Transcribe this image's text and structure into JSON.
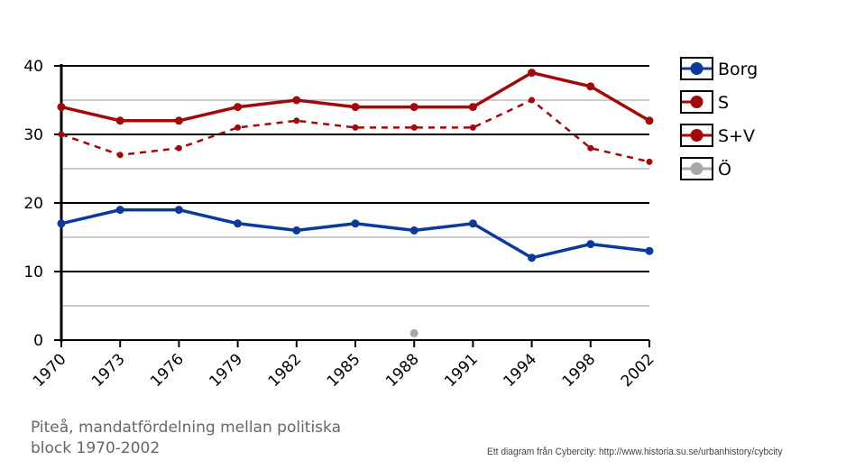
{
  "chart_data": {
    "type": "line",
    "title": "Piteå, mandatfördelning mellan politiska block 1970-2002",
    "xlabel": "",
    "ylabel": "",
    "categories": [
      "1970",
      "1973",
      "1976",
      "1979",
      "1982",
      "1985",
      "1988",
      "1991",
      "1994",
      "1998",
      "2002"
    ],
    "ylim": [
      0,
      40
    ],
    "yticks": [
      0,
      10,
      20,
      30,
      40
    ],
    "grid": true,
    "legend_position": "right",
    "series": [
      {
        "name": "Borg",
        "color": "#0b3a9a",
        "dashed": false,
        "values": [
          17,
          19,
          19,
          17,
          16,
          17,
          16,
          17,
          12,
          14,
          13
        ]
      },
      {
        "name": "S",
        "color": "#a10a0a",
        "dashed": true,
        "values": [
          30,
          27,
          28,
          31,
          32,
          31,
          31,
          31,
          35,
          28,
          26
        ]
      },
      {
        "name": "S+V",
        "color": "#a10a0a",
        "dashed": false,
        "values": [
          34,
          32,
          32,
          34,
          35,
          34,
          34,
          34,
          39,
          37,
          32
        ]
      },
      {
        "name": "Ö",
        "color": "#a8a8a8",
        "dashed": false,
        "values": [
          null,
          null,
          null,
          null,
          null,
          null,
          1,
          null,
          null,
          null,
          null
        ]
      }
    ]
  },
  "caption": "Piteå, mandatfördelning mellan politiska block 1970-2002",
  "caption_line1": "Piteå, mandatfördelning mellan politiska",
  "caption_line2": "block 1970-2002",
  "credit": "Ett diagram från Cybercity: http://www.historia.su.se/urbanhistory/cybcity"
}
